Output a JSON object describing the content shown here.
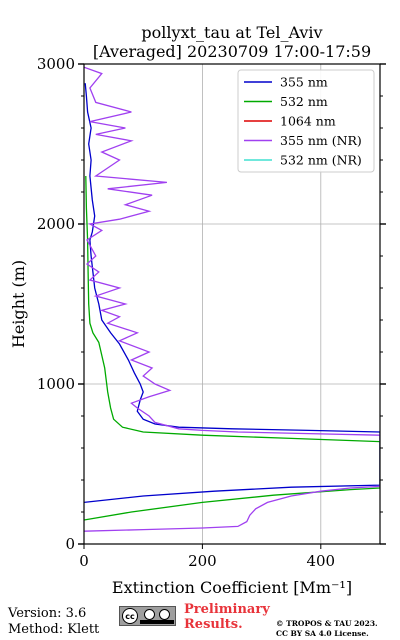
{
  "title": {
    "line1": "pollyxt_tau at Tel_Aviv",
    "line2": "[Averaged] 20230709 17:00-17:59"
  },
  "chart_data": {
    "type": "line",
    "xlabel": "Extinction Coefficient [Mm⁻¹]",
    "ylabel": "Height (m)",
    "xlim": [
      0,
      500
    ],
    "ylim": [
      0,
      3000
    ],
    "xticks": [
      0,
      200,
      400
    ],
    "yticks": [
      0,
      1000,
      2000,
      3000
    ],
    "grid": true,
    "legend_position": "top-right",
    "series": [
      {
        "name": "355 nm",
        "color": "#0000cc",
        "points": [
          [
            0,
            260
          ],
          [
            100,
            300
          ],
          [
            220,
            330
          ],
          [
            350,
            355
          ],
          [
            500,
            368
          ],
          [
            500,
            700
          ],
          [
            380,
            710
          ],
          [
            250,
            720
          ],
          [
            160,
            730
          ],
          [
            120,
            750
          ],
          [
            100,
            780
          ],
          [
            90,
            830
          ],
          [
            95,
            900
          ],
          [
            100,
            950
          ],
          [
            95,
            1000
          ],
          [
            85,
            1070
          ],
          [
            75,
            1150
          ],
          [
            60,
            1250
          ],
          [
            45,
            1320
          ],
          [
            30,
            1400
          ],
          [
            25,
            1500
          ],
          [
            18,
            1600
          ],
          [
            15,
            1700
          ],
          [
            12,
            1800
          ],
          [
            10,
            1900
          ],
          [
            14,
            1950
          ],
          [
            18,
            2050
          ],
          [
            14,
            2150
          ],
          [
            10,
            2300
          ],
          [
            12,
            2400
          ],
          [
            8,
            2500
          ],
          [
            12,
            2600
          ],
          [
            6,
            2700
          ],
          [
            4,
            2800
          ],
          [
            2,
            2880
          ]
        ]
      },
      {
        "name": "532 nm",
        "color": "#00aa00",
        "points": [
          [
            0,
            150
          ],
          [
            80,
            200
          ],
          [
            200,
            260
          ],
          [
            320,
            305
          ],
          [
            450,
            340
          ],
          [
            500,
            350
          ],
          [
            500,
            640
          ],
          [
            350,
            660
          ],
          [
            200,
            680
          ],
          [
            100,
            700
          ],
          [
            65,
            730
          ],
          [
            50,
            780
          ],
          [
            45,
            850
          ],
          [
            40,
            950
          ],
          [
            35,
            1100
          ],
          [
            25,
            1260
          ],
          [
            15,
            1320
          ],
          [
            10,
            1380
          ],
          [
            8,
            1500
          ],
          [
            7,
            1700
          ],
          [
            6,
            1900
          ],
          [
            4,
            2100
          ],
          [
            3,
            2300
          ]
        ]
      },
      {
        "name": "1064 nm",
        "color": "#dd0000",
        "points": []
      },
      {
        "name": "355 nm (NR)",
        "color": "#a040f0",
        "points": [
          [
            0,
            80
          ],
          [
            100,
            90
          ],
          [
            200,
            100
          ],
          [
            260,
            110
          ],
          [
            275,
            140
          ],
          [
            280,
            180
          ],
          [
            290,
            220
          ],
          [
            310,
            260
          ],
          [
            350,
            300
          ],
          [
            400,
            330
          ],
          [
            450,
            350
          ],
          [
            500,
            360
          ],
          [
            500,
            680
          ],
          [
            380,
            690
          ],
          [
            260,
            700
          ],
          [
            200,
            710
          ],
          [
            160,
            720
          ],
          [
            120,
            760
          ],
          [
            110,
            800
          ],
          [
            90,
            850
          ],
          [
            80,
            880
          ],
          [
            110,
            920
          ],
          [
            145,
            960
          ],
          [
            120,
            1000
          ],
          [
            100,
            1050
          ],
          [
            115,
            1100
          ],
          [
            80,
            1150
          ],
          [
            110,
            1200
          ],
          [
            60,
            1270
          ],
          [
            90,
            1320
          ],
          [
            40,
            1380
          ],
          [
            60,
            1420
          ],
          [
            30,
            1460
          ],
          [
            70,
            1500
          ],
          [
            20,
            1550
          ],
          [
            60,
            1600
          ],
          [
            10,
            1650
          ],
          [
            25,
            1700
          ],
          [
            5,
            1750
          ],
          [
            20,
            1800
          ],
          [
            5,
            1900
          ],
          [
            30,
            1960
          ],
          [
            10,
            2000
          ],
          [
            60,
            2030
          ],
          [
            110,
            2080
          ],
          [
            70,
            2120
          ],
          [
            115,
            2180
          ],
          [
            40,
            2220
          ],
          [
            140,
            2260
          ],
          [
            20,
            2300
          ],
          [
            60,
            2400
          ],
          [
            30,
            2450
          ],
          [
            80,
            2520
          ],
          [
            20,
            2560
          ],
          [
            70,
            2600
          ],
          [
            10,
            2640
          ],
          [
            80,
            2700
          ],
          [
            20,
            2760
          ],
          [
            10,
            2850
          ],
          [
            30,
            2940
          ],
          [
            0,
            2980
          ]
        ]
      },
      {
        "name": "532 nm (NR)",
        "color": "#40e0d0",
        "points": []
      }
    ]
  },
  "footer": {
    "version": "Version: 3.6",
    "method": "Method: Klett",
    "preliminary_line1": "Preliminary",
    "preliminary_line2": "Results.",
    "copyright_line1": "© TROPOS & TAU 2023.",
    "copyright_line2": "CC BY SA 4.0 License."
  }
}
